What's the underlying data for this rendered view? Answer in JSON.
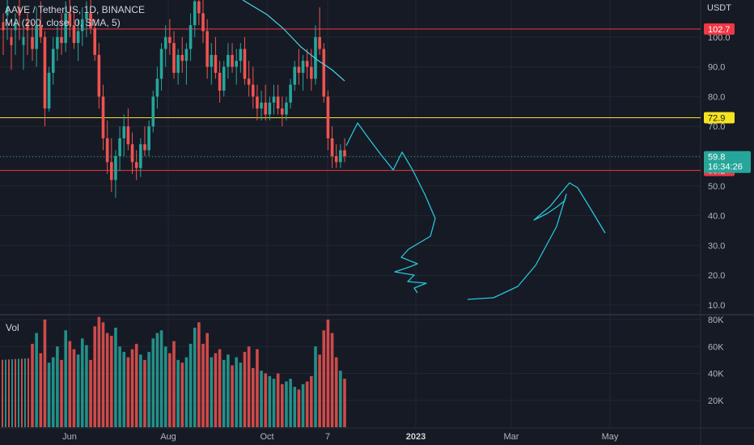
{
  "header": {
    "symbol_line": "AAVE / TetherUS, 1D, BINANCE",
    "indicator_line": "MA (200, close, 0, SMA, 5)",
    "currency": "USDT",
    "volume_label": "Vol"
  },
  "colors": {
    "background": "#161a25",
    "grid": "#222632",
    "up": "#26a69a",
    "down": "#ef5350",
    "red_level": "#f23645",
    "yellow_level": "#f6e31f",
    "ma_line": "#4dd0e1",
    "drawing": "#26c6da",
    "axis_text": "#b2b5be"
  },
  "chart_data": {
    "type": "candlestick",
    "ylim": [
      5,
      115
    ],
    "yticks": [
      10,
      20,
      30,
      40,
      50,
      60,
      70,
      80,
      90,
      100
    ],
    "x_labels": [
      "Jun",
      "Aug",
      "Oct",
      "7",
      "2023",
      "Mar",
      "May"
    ],
    "horizontal_levels": [
      {
        "value": 102.7,
        "label": "102.7",
        "color": "red"
      },
      {
        "value": 72.9,
        "label": "72.9",
        "color": "yellow"
      },
      {
        "value": 55.2,
        "label": "55.2",
        "color": "red"
      }
    ],
    "last_price": {
      "value": 59.8,
      "label": "59.8",
      "countdown": "16:34:26"
    },
    "moving_average": {
      "name": "MA (200, close, 0, SMA, 5)",
      "points": [
        [
          1,
          120
        ],
        [
          80,
          108
        ],
        [
          120,
          103
        ],
        [
          150,
          95
        ],
        [
          160,
          89
        ]
      ]
    },
    "volume": {
      "ylim": [
        0,
        85000
      ],
      "yticks_labels": [
        "80K",
        "60K",
        "40K",
        "20K"
      ],
      "yticks": [
        80000,
        60000,
        40000,
        20000
      ]
    },
    "candles": [
      [
        100,
        105,
        92,
        96
      ],
      [
        96,
        110,
        90,
        104
      ],
      [
        104,
        112,
        98,
        100
      ],
      [
        100,
        102,
        70,
        76
      ],
      [
        76,
        90,
        75,
        88
      ],
      [
        88,
        100,
        84,
        96
      ],
      [
        96,
        104,
        92,
        100
      ],
      [
        100,
        108,
        94,
        98
      ],
      [
        98,
        112,
        95,
        108
      ],
      [
        108,
        114,
        100,
        104
      ],
      [
        104,
        109,
        96,
        98
      ],
      [
        98,
        106,
        92,
        102
      ],
      [
        102,
        110,
        97,
        106
      ],
      [
        106,
        112,
        100,
        108
      ],
      [
        108,
        113,
        101,
        103
      ],
      [
        103,
        106,
        92,
        94
      ],
      [
        94,
        98,
        76,
        80
      ],
      [
        80,
        84,
        62,
        66
      ],
      [
        66,
        72,
        54,
        58
      ],
      [
        58,
        66,
        48,
        52
      ],
      [
        52,
        62,
        46,
        60
      ],
      [
        60,
        70,
        55,
        66
      ],
      [
        66,
        74,
        60,
        70
      ],
      [
        70,
        76,
        62,
        64
      ],
      [
        64,
        68,
        54,
        58
      ],
      [
        58,
        62,
        52,
        56
      ],
      [
        56,
        66,
        53,
        64
      ],
      [
        64,
        70,
        60,
        62
      ],
      [
        62,
        72,
        60,
        70
      ],
      [
        70,
        82,
        68,
        80
      ],
      [
        80,
        90,
        76,
        86
      ],
      [
        86,
        98,
        82,
        96
      ],
      [
        96,
        104,
        90,
        100
      ],
      [
        100,
        106,
        94,
        98
      ],
      [
        98,
        102,
        86,
        88
      ],
      [
        88,
        96,
        84,
        94
      ],
      [
        94,
        100,
        88,
        92
      ],
      [
        92,
        98,
        84,
        96
      ],
      [
        96,
        108,
        92,
        104
      ],
      [
        104,
        114,
        100,
        112
      ],
      [
        112,
        118,
        104,
        108
      ],
      [
        108,
        114,
        98,
        102
      ],
      [
        102,
        106,
        86,
        90
      ],
      [
        90,
        98,
        84,
        94
      ],
      [
        94,
        100,
        86,
        88
      ],
      [
        88,
        92,
        78,
        82
      ],
      [
        82,
        92,
        80,
        90
      ],
      [
        90,
        98,
        86,
        94
      ],
      [
        94,
        98,
        88,
        90
      ],
      [
        90,
        96,
        84,
        92
      ],
      [
        92,
        98,
        88,
        96
      ],
      [
        96,
        100,
        84,
        86
      ],
      [
        86,
        92,
        80,
        84
      ],
      [
        84,
        90,
        76,
        80
      ],
      [
        80,
        84,
        72,
        76
      ],
      [
        76,
        82,
        72,
        78
      ],
      [
        78,
        84,
        72,
        74
      ],
      [
        74,
        80,
        72,
        78
      ],
      [
        78,
        84,
        74,
        80
      ],
      [
        80,
        84,
        74,
        76
      ],
      [
        76,
        80,
        70,
        74
      ],
      [
        74,
        80,
        72,
        78
      ],
      [
        78,
        86,
        76,
        84
      ],
      [
        84,
        92,
        82,
        90
      ],
      [
        90,
        96,
        84,
        88
      ],
      [
        88,
        94,
        82,
        92
      ],
      [
        92,
        96,
        86,
        90
      ],
      [
        90,
        96,
        82,
        86
      ],
      [
        86,
        104,
        84,
        100
      ],
      [
        100,
        110,
        94,
        96
      ],
      [
        96,
        98,
        78,
        80
      ],
      [
        80,
        82,
        62,
        66
      ],
      [
        66,
        70,
        56,
        60
      ],
      [
        60,
        64,
        56,
        58
      ],
      [
        58,
        64,
        56,
        62
      ],
      [
        62,
        66,
        58,
        60
      ]
    ],
    "volume_values": [
      62000,
      70000,
      55000,
      80000,
      48000,
      52000,
      60000,
      50000,
      72000,
      64000,
      58000,
      54000,
      66000,
      61000,
      50000,
      75000,
      82000,
      78000,
      70000,
      68000,
      74000,
      60000,
      56000,
      52000,
      58000,
      62000,
      54000,
      50000,
      56000,
      66000,
      70000,
      72000,
      60000,
      55000,
      64000,
      50000,
      48000,
      52000,
      62000,
      74000,
      78000,
      62000,
      70000,
      52000,
      55000,
      58000,
      50000,
      54000,
      46000,
      52000,
      48000,
      56000,
      60000,
      44000,
      58000,
      42000,
      40000,
      38000,
      36000,
      40000,
      32000,
      34000,
      36000,
      30000,
      28000,
      32000,
      34000,
      38000,
      60000,
      54000,
      72000,
      80000,
      70000,
      52000,
      42000,
      36000
    ]
  },
  "drawings": {
    "projection_down": [
      [
        428,
        180
      ],
      [
        442,
        152
      ],
      [
        455,
        170
      ],
      [
        470,
        190
      ],
      [
        486,
        210
      ],
      [
        497,
        188
      ],
      [
        510,
        210
      ],
      [
        525,
        240
      ],
      [
        538,
        270
      ],
      [
        532,
        292
      ],
      [
        505,
        308
      ],
      [
        496,
        318
      ],
      [
        516,
        326
      ],
      [
        506,
        330
      ],
      [
        488,
        336
      ],
      [
        512,
        340
      ],
      [
        504,
        348
      ],
      [
        527,
        350
      ],
      [
        512,
        356
      ],
      [
        516,
        362
      ]
    ],
    "projection_up": [
      [
        578,
        370
      ],
      [
        610,
        368
      ],
      [
        640,
        354
      ],
      [
        662,
        328
      ],
      [
        688,
        280
      ],
      [
        700,
        240
      ],
      [
        698,
        248
      ],
      [
        688,
        256
      ],
      [
        676,
        264
      ],
      [
        660,
        272
      ],
      [
        680,
        255
      ],
      [
        694,
        238
      ],
      [
        704,
        226
      ],
      [
        714,
        232
      ],
      [
        730,
        258
      ],
      [
        748,
        288
      ]
    ]
  }
}
